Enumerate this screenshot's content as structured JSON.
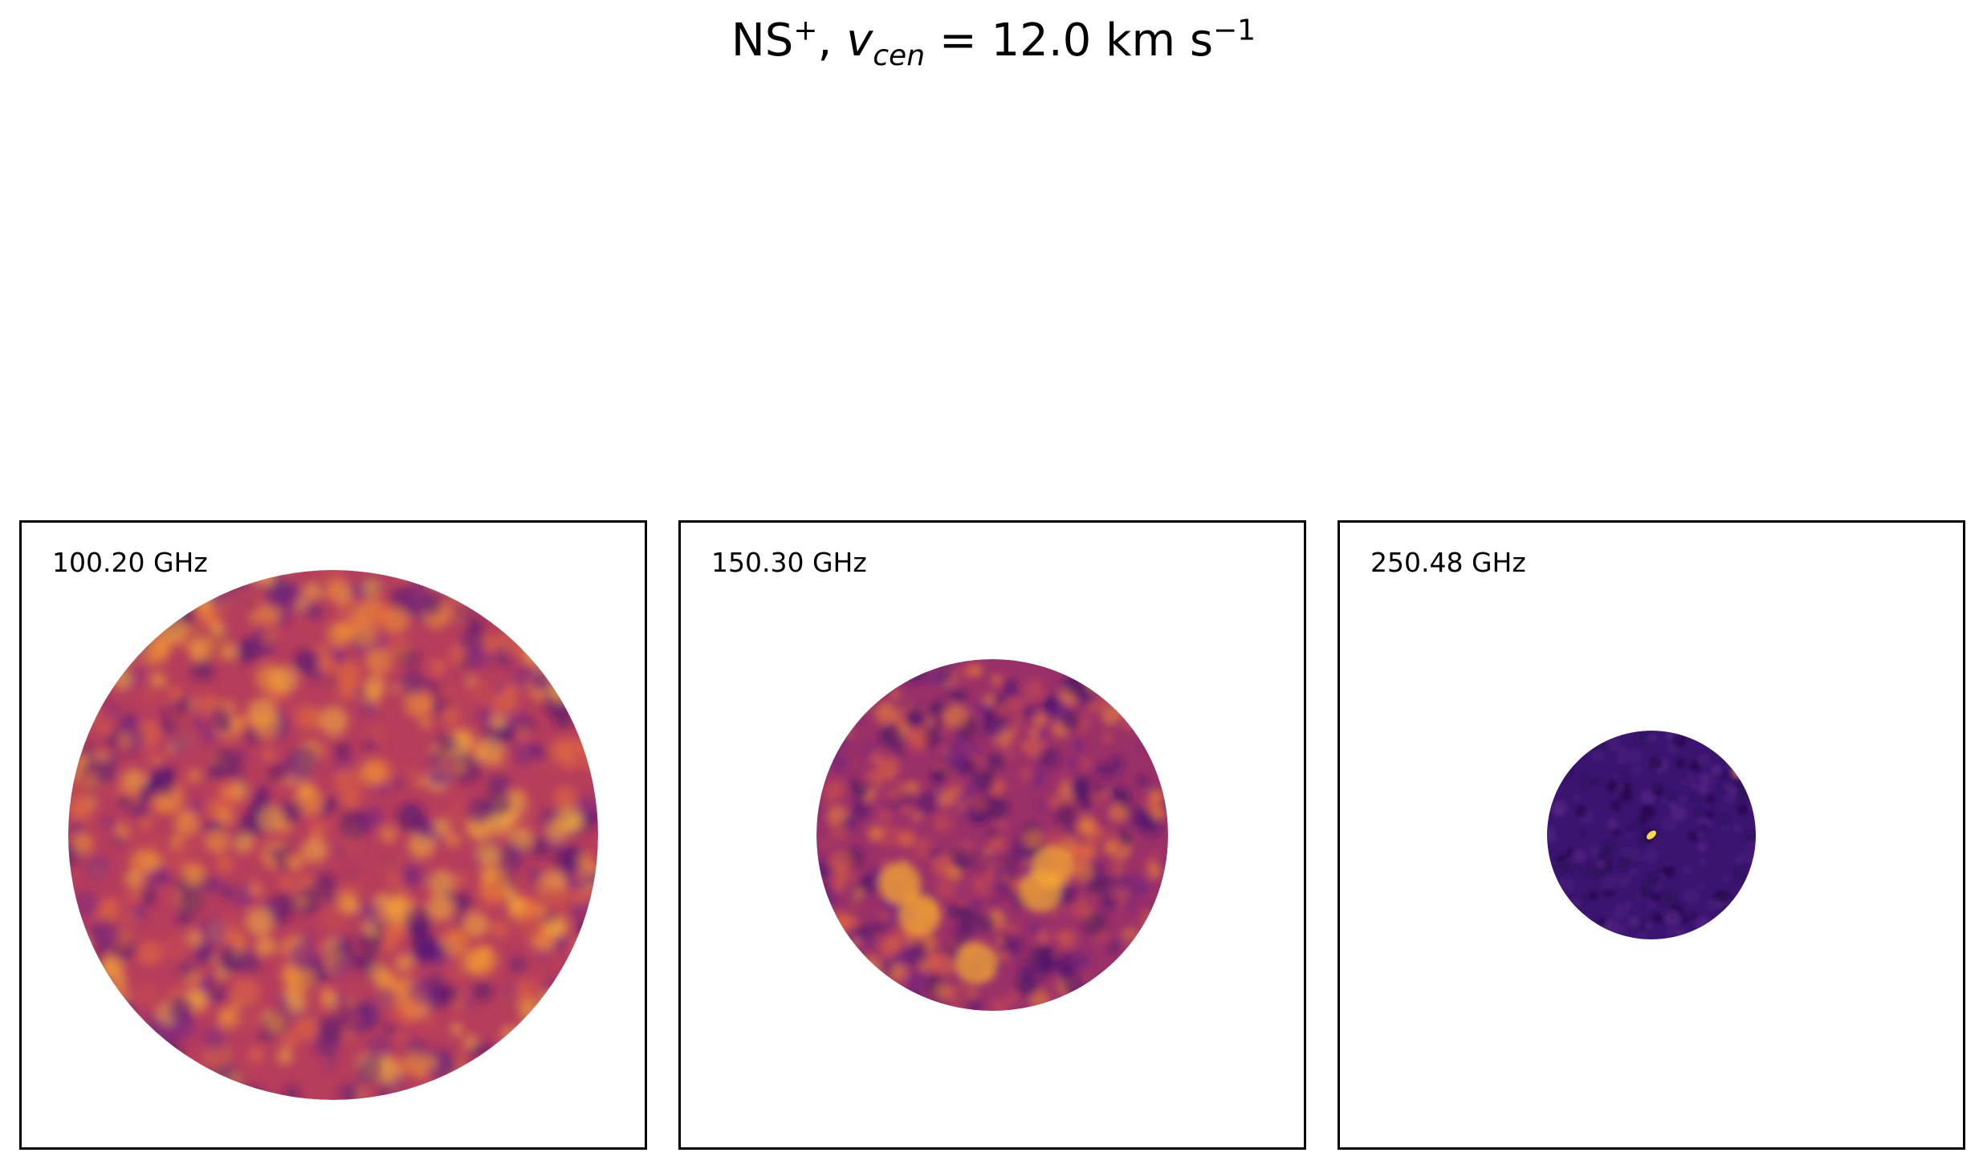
{
  "figure": {
    "title": {
      "species": "NS",
      "charge": "+",
      "sep": ", ",
      "var": "v",
      "var_sub": "cen",
      "eq": " =  12.0 km s",
      "exp": "−1"
    }
  },
  "chart_data": [
    {
      "type": "heatmap",
      "label": "100.20 GHz",
      "colormap": "inferno",
      "footprint_radius_rel": 0.85,
      "feature": "extended emission filling the field"
    },
    {
      "type": "heatmap",
      "label": "150.30 GHz",
      "colormap": "inferno",
      "footprint_radius_rel": 0.565,
      "feature": "extended emission, bright clumps below centre"
    },
    {
      "type": "heatmap",
      "label": "250.48 GHz",
      "colormap": "inferno",
      "footprint_radius_rel": 0.335,
      "feature": "faint background with a compact bright source at centre"
    }
  ]
}
